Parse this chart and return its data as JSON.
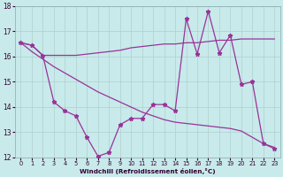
{
  "background_color": "#c8eaea",
  "grid_color": "#b0d0d0",
  "line_color": "#993399",
  "xlim": [
    -0.5,
    23.5
  ],
  "ylim": [
    12,
    18
  ],
  "yticks": [
    12,
    13,
    14,
    15,
    16,
    17,
    18
  ],
  "xticks": [
    0,
    1,
    2,
    3,
    4,
    5,
    6,
    7,
    8,
    9,
    10,
    11,
    12,
    13,
    14,
    15,
    16,
    17,
    18,
    19,
    20,
    21,
    22,
    23
  ],
  "xlabel": "Windchill (Refroidissement éolien,°C)",
  "series_A_x": [
    0,
    1,
    2,
    3,
    4,
    5,
    6,
    7,
    8,
    9,
    10,
    11,
    12,
    13,
    14,
    15,
    16,
    17,
    18,
    19,
    20,
    21,
    22,
    23
  ],
  "series_A_y": [
    16.55,
    16.45,
    16.05,
    16.05,
    16.05,
    16.05,
    16.1,
    16.15,
    16.2,
    16.25,
    16.35,
    16.4,
    16.45,
    16.5,
    16.5,
    16.55,
    16.55,
    16.6,
    16.65,
    16.65,
    16.7,
    16.7,
    16.7,
    16.7
  ],
  "series_B_x": [
    0,
    1,
    2,
    3,
    4,
    5,
    6,
    7,
    8,
    9,
    10,
    11,
    12,
    13,
    14,
    15,
    16,
    17,
    18,
    19,
    20,
    21,
    22,
    23
  ],
  "series_B_y": [
    16.55,
    16.2,
    15.9,
    15.6,
    15.35,
    15.1,
    14.85,
    14.6,
    14.4,
    14.2,
    14.0,
    13.8,
    13.65,
    13.5,
    13.4,
    13.35,
    13.3,
    13.25,
    13.2,
    13.15,
    13.05,
    12.8,
    12.55,
    12.4
  ],
  "series_C_x": [
    0,
    1,
    2,
    3,
    4,
    5,
    6,
    7,
    8,
    9,
    10,
    11,
    12,
    13,
    14,
    15,
    16,
    17,
    18,
    19,
    20,
    21,
    22,
    23
  ],
  "series_C_y": [
    16.55,
    16.45,
    16.05,
    14.2,
    13.85,
    13.65,
    12.8,
    12.05,
    12.2,
    13.3,
    13.55,
    13.55,
    14.1,
    14.1,
    13.85,
    17.5,
    16.1,
    17.8,
    16.15,
    16.85,
    14.9,
    15.0,
    12.55,
    12.35
  ]
}
